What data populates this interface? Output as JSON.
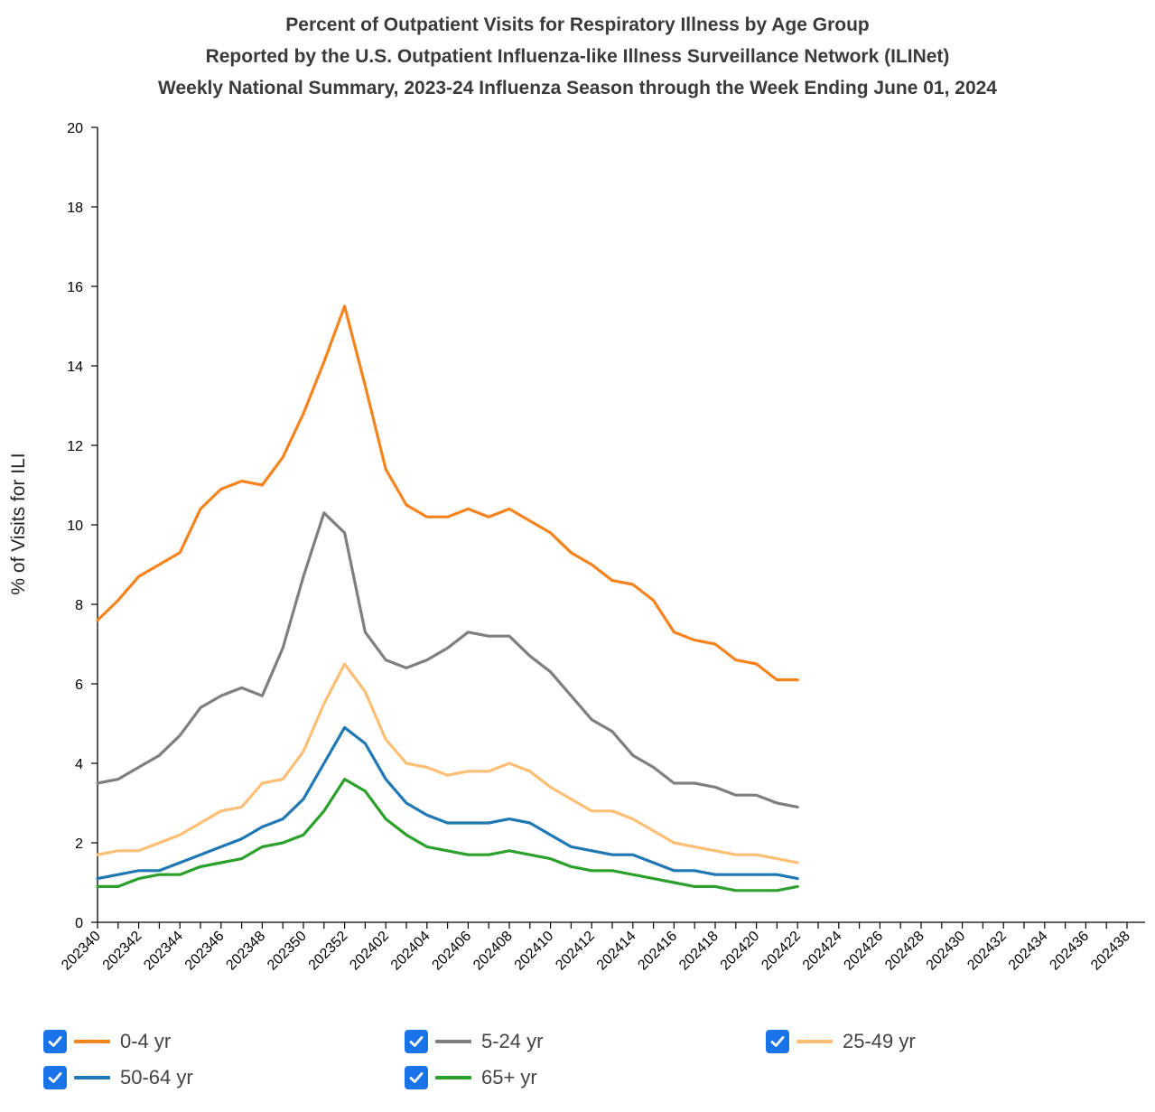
{
  "chart_data": {
    "type": "line",
    "title_lines": [
      "Percent of Outpatient Visits for Respiratory Illness by Age Group",
      "Reported by the U.S. Outpatient Influenza-like Illness Surveillance Network (ILINet)",
      "Weekly National Summary, 2023-24 Influenza Season through the Week Ending June 01, 2024"
    ],
    "ylabel": "% of Visits for ILI",
    "xlabel": "",
    "ylim": [
      0,
      20
    ],
    "y_ticks": [
      0,
      2,
      4,
      6,
      8,
      10,
      12,
      14,
      16,
      18,
      20
    ],
    "x_categories": [
      "202340",
      "202341",
      "202342",
      "202343",
      "202344",
      "202345",
      "202346",
      "202347",
      "202348",
      "202349",
      "202350",
      "202351",
      "202352",
      "202401",
      "202402",
      "202403",
      "202404",
      "202405",
      "202406",
      "202407",
      "202408",
      "202409",
      "202410",
      "202411",
      "202412",
      "202413",
      "202414",
      "202415",
      "202416",
      "202417",
      "202418",
      "202419",
      "202420",
      "202421",
      "202422",
      "202423",
      "202424",
      "202425",
      "202426",
      "202427",
      "202428",
      "202429",
      "202430",
      "202431",
      "202432",
      "202433",
      "202434",
      "202435",
      "202436",
      "202437",
      "202438",
      "202439"
    ],
    "x_tick_labels": [
      "202340",
      "202342",
      "202344",
      "202346",
      "202348",
      "202350",
      "202352",
      "202402",
      "202404",
      "202406",
      "202408",
      "202410",
      "202412",
      "202414",
      "202416",
      "202418",
      "202420",
      "202422",
      "202424",
      "202426",
      "202428",
      "202430",
      "202432",
      "202434",
      "202436",
      "202438"
    ],
    "grid": false,
    "legend_placement": "bottom",
    "series": [
      {
        "name": "0-4 yr",
        "color": "#f5841f",
        "checked": true,
        "values": [
          7.6,
          8.1,
          8.7,
          9.0,
          9.3,
          10.4,
          10.9,
          11.1,
          11.0,
          11.7,
          12.8,
          14.1,
          15.5,
          13.5,
          11.4,
          10.5,
          10.2,
          10.2,
          10.4,
          10.2,
          10.4,
          10.1,
          9.8,
          9.3,
          9.0,
          8.6,
          8.5,
          8.1,
          7.3,
          7.1,
          7.0,
          6.6,
          6.5,
          6.1,
          6.1
        ]
      },
      {
        "name": "5-24 yr",
        "color": "#7f7f7f",
        "checked": true,
        "values": [
          3.5,
          3.6,
          3.9,
          4.2,
          4.7,
          5.4,
          5.7,
          5.9,
          5.7,
          6.9,
          8.7,
          10.3,
          9.8,
          7.3,
          6.6,
          6.4,
          6.6,
          6.9,
          7.3,
          7.2,
          7.2,
          6.7,
          6.3,
          5.7,
          5.1,
          4.8,
          4.2,
          3.9,
          3.5,
          3.5,
          3.4,
          3.2,
          3.2,
          3.0,
          2.9
        ]
      },
      {
        "name": "25-49 yr",
        "color": "#fcbf75",
        "checked": true,
        "values": [
          1.7,
          1.8,
          1.8,
          2.0,
          2.2,
          2.5,
          2.8,
          2.9,
          3.5,
          3.6,
          4.3,
          5.5,
          6.5,
          5.8,
          4.6,
          4.0,
          3.9,
          3.7,
          3.8,
          3.8,
          4.0,
          3.8,
          3.4,
          3.1,
          2.8,
          2.8,
          2.6,
          2.3,
          2.0,
          1.9,
          1.8,
          1.7,
          1.7,
          1.6,
          1.5
        ]
      },
      {
        "name": "50-64 yr",
        "color": "#1f77b4",
        "checked": true,
        "values": [
          1.1,
          1.2,
          1.3,
          1.3,
          1.5,
          1.7,
          1.9,
          2.1,
          2.4,
          2.6,
          3.1,
          4.0,
          4.9,
          4.5,
          3.6,
          3.0,
          2.7,
          2.5,
          2.5,
          2.5,
          2.6,
          2.5,
          2.2,
          1.9,
          1.8,
          1.7,
          1.7,
          1.5,
          1.3,
          1.3,
          1.2,
          1.2,
          1.2,
          1.2,
          1.1
        ]
      },
      {
        "name": "65+ yr",
        "color": "#2ca02c",
        "checked": true,
        "values": [
          0.9,
          0.9,
          1.1,
          1.2,
          1.2,
          1.4,
          1.5,
          1.6,
          1.9,
          2.0,
          2.2,
          2.8,
          3.6,
          3.3,
          2.6,
          2.2,
          1.9,
          1.8,
          1.7,
          1.7,
          1.8,
          1.7,
          1.6,
          1.4,
          1.3,
          1.3,
          1.2,
          1.1,
          1.0,
          0.9,
          0.9,
          0.8,
          0.8,
          0.8,
          0.9
        ]
      }
    ]
  }
}
